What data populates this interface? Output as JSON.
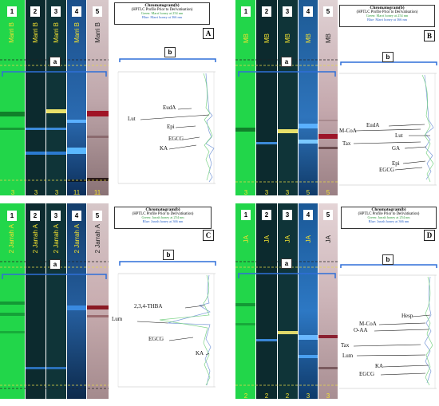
{
  "panels": [
    {
      "letter": "A",
      "title": "Chromatogram(b)",
      "subtitle": "(HPTLC Profile Prior to Derivatisation)",
      "green_line": "Green: Marri honey at 254 nm",
      "blue_line": "Blue: Marri honey at 366 nm",
      "track_numbers": [
        "1",
        "2",
        "3",
        "4",
        "5"
      ],
      "track_labels": [
        "Marri B",
        "Marri B",
        "Marri B",
        "Marri B",
        "Marri B"
      ],
      "bottom_numbers": [
        "3",
        "3",
        "3",
        "11",
        "11"
      ],
      "label_a": "a",
      "label_b": "b",
      "compounds": [
        "EudA",
        "Lut",
        "Epi",
        "EGCG",
        "KA"
      ]
    },
    {
      "letter": "B",
      "title": "Chromatogram(b)",
      "subtitle": "(HPTLC Profile Prior to Derivatisation)",
      "green_line": "Green: Marri honey at 254 nm",
      "blue_line": "Blue: Marri honey at 366 nm",
      "track_numbers": [
        "1",
        "2",
        "3",
        "4",
        "5"
      ],
      "track_labels": [
        "MB",
        "MB",
        "MB",
        "MB",
        "MB"
      ],
      "bottom_numbers": [
        "3",
        "3",
        "3",
        "5",
        "5"
      ],
      "label_a": "a",
      "label_b": "b",
      "compounds": [
        "M-CoA",
        "EudA",
        "Lut",
        "Tax",
        "GA",
        "Epi",
        "EGCG"
      ]
    },
    {
      "letter": "C",
      "title": "Chromatogram(b)",
      "subtitle": "(HPTLC Profile Prior to Derivatisation)",
      "green_line": "Green: Jarrah honey at 254 nm",
      "blue_line": "Blue: Jarrah honey at 366 nm",
      "track_numbers": [
        "1",
        "2",
        "3",
        "4",
        "5"
      ],
      "track_labels": [
        "2 Jarrah A",
        "2 Jarrah A",
        "2 Jarrah A",
        "2 Jarrah A",
        "2 Jarrah A"
      ],
      "bottom_numbers": [],
      "label_a": "a",
      "label_b": "b",
      "compounds": [
        "2,3,4-THBA",
        "Lum",
        "EGCG",
        "KA"
      ]
    },
    {
      "letter": "D",
      "title": "Chromatogram(b)",
      "subtitle": "(HPTLC Profile Prior to Derivatisation)",
      "green_line": "Green: Jarrah honey at 254 nm",
      "blue_line": "Blue: Jarrah honey at 366 nm",
      "track_numbers": [
        "1",
        "2",
        "3",
        "4",
        "5"
      ],
      "track_labels": [
        "JA",
        "JA",
        "JA",
        "JA",
        "JA"
      ],
      "bottom_numbers": [
        "2",
        "2",
        "2",
        "3",
        "3"
      ],
      "label_a": "a",
      "label_b": "b",
      "compounds": [
        "Hesp",
        "M-CoA",
        "O-AA",
        "Tax",
        "Lum",
        "KA",
        "EGCG"
      ]
    }
  ],
  "colors": {
    "track1": "#22d64a",
    "track2": "#0c2a2e",
    "track3": "#0f3438",
    "track4": "#1f5a96",
    "track5": "#c9b3b6",
    "bracket": "#2f6fd8",
    "dash_yellow": "#e8d84a",
    "dash_dark": "#222222",
    "green_trace": "#7fd48a",
    "blue_trace": "#7a9ad8"
  }
}
